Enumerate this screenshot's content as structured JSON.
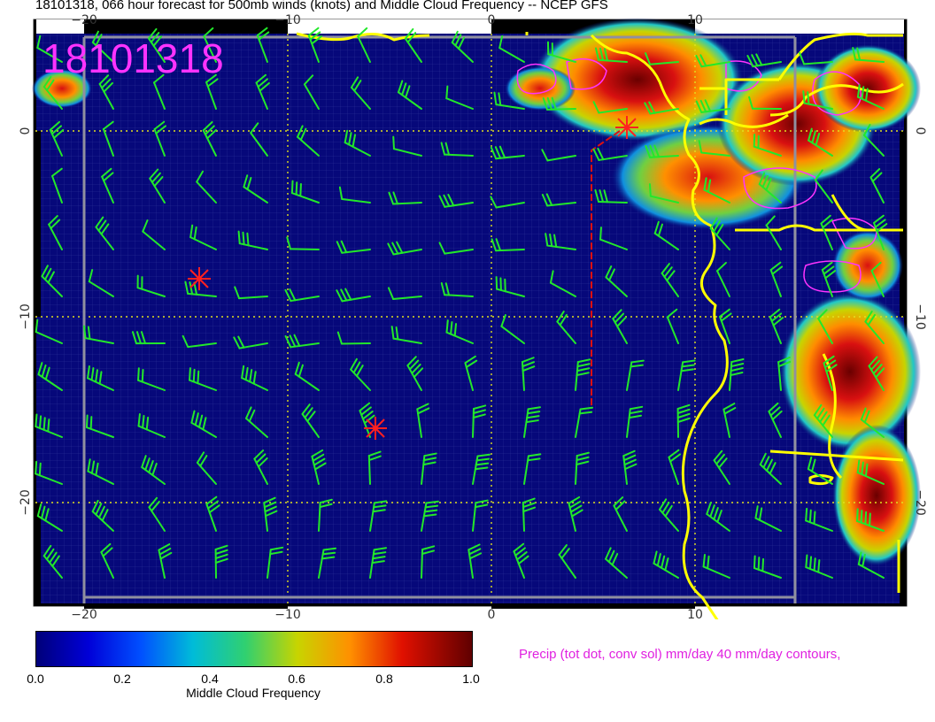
{
  "title": "18101318, 066 hour forecast for 500mb winds (knots) and Middle Cloud Frequency -- NCEP GFS",
  "stamp": "18101318",
  "x_ticks": [
    "−20",
    "−10",
    "0",
    "10"
  ],
  "y_ticks": [
    "0",
    "−10",
    "−20"
  ],
  "colorbar": {
    "title": "Middle Cloud Frequency",
    "labels": [
      "0.0",
      "0.2",
      "0.4",
      "0.6",
      "0.8",
      "1.0"
    ]
  },
  "precip_label": "Precip (tot dot, conv sol) mm/day 40 mm/day contours,",
  "colors": {
    "ocean_field": "#06087a",
    "wind_barb": "#22e82a",
    "coastline": "#ffff00",
    "precip_contour": "#ff33ff",
    "storm_marker": "#ff2020",
    "stamp": "#ff33ff"
  },
  "icons": [
    "tropical-storm-marker-icon"
  ]
}
